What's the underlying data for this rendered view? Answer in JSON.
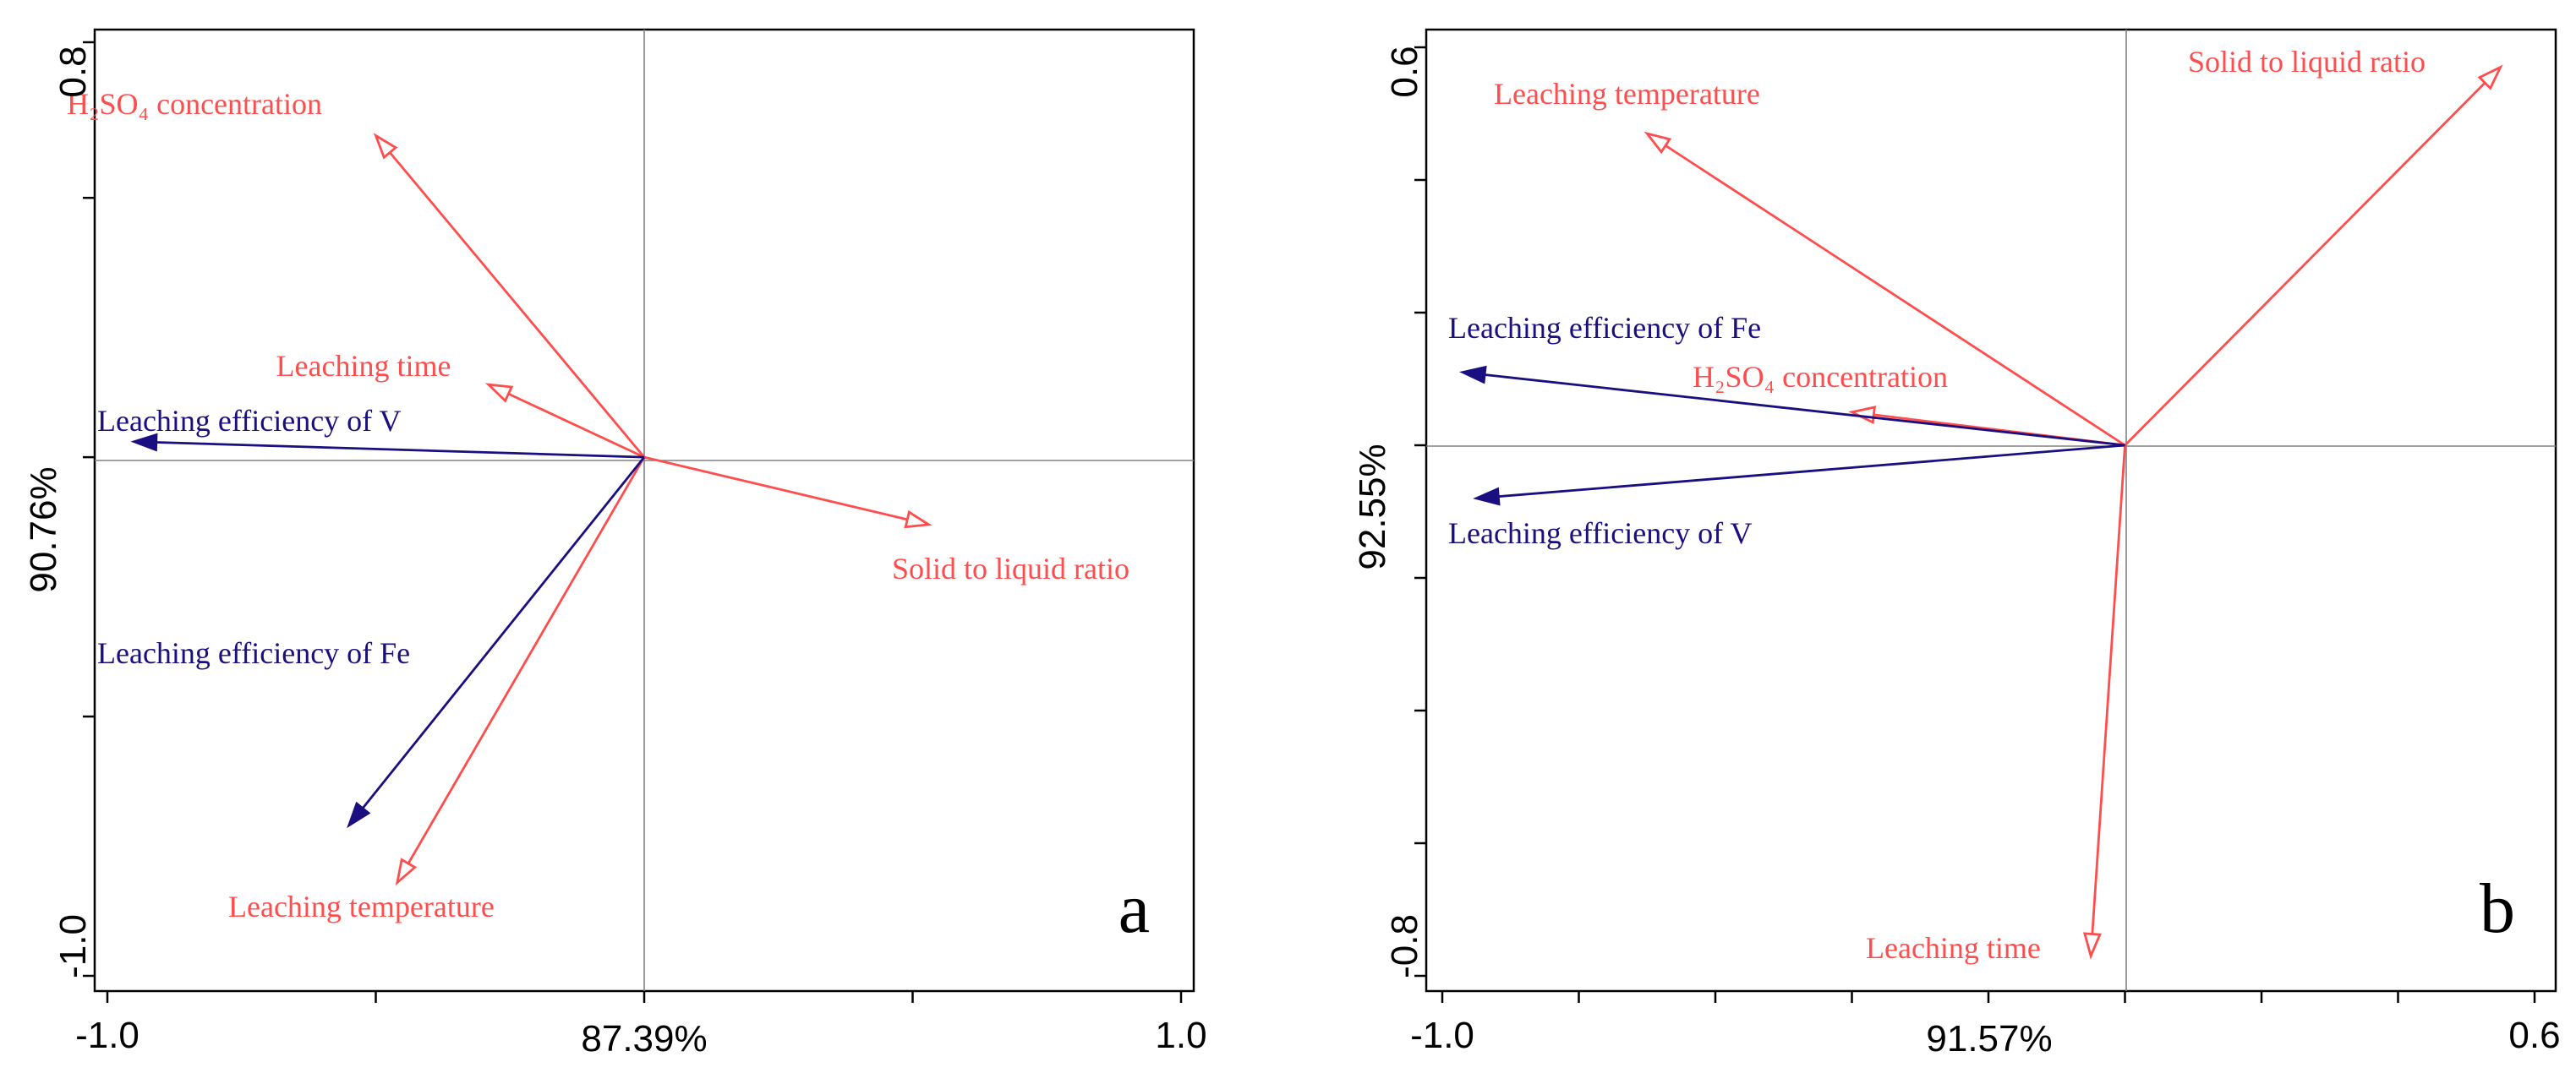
{
  "chart_data": [
    {
      "type": "biplot",
      "panel": "a",
      "xlabel": "87.39%",
      "ylabel": "90.76%",
      "xlim": [
        -1.0,
        1.0
      ],
      "ylim": [
        -1.0,
        0.8
      ],
      "x_tick_labels": [
        "-1.0",
        "1.0"
      ],
      "y_tick_labels": [
        "0.8",
        "-1.0"
      ],
      "x_minor_ticks": [
        -1.0,
        -0.5,
        0.0,
        0.5,
        1.0
      ],
      "y_minor_ticks": [
        -1.0,
        -0.5,
        0.0,
        0.5,
        0.8
      ],
      "vectors": [
        {
          "name": "H2SO4 concentration",
          "label": "H₂SO₄ concentration",
          "x": -0.5,
          "y": 0.62,
          "group": "factor",
          "color": "#ff4d4d",
          "head": "open"
        },
        {
          "name": "Leaching time",
          "label": "Leaching time",
          "x": -0.29,
          "y": 0.14,
          "group": "factor",
          "color": "#ff4d4d",
          "head": "open"
        },
        {
          "name": "Solid to liquid ratio",
          "label": "Solid to liquid ratio",
          "x": 0.53,
          "y": -0.13,
          "group": "factor",
          "color": "#ff4d4d",
          "head": "open"
        },
        {
          "name": "Leaching temperature",
          "label": "Leaching temperature",
          "x": -0.46,
          "y": -0.82,
          "group": "factor",
          "color": "#ff4d4d",
          "head": "open"
        },
        {
          "name": "Leaching efficiency of V",
          "label": "Leaching efficiency of V",
          "x": -0.95,
          "y": 0.03,
          "group": "response",
          "color": "#1a0f80",
          "head": "filled"
        },
        {
          "name": "Leaching efficiency of Fe",
          "label": "Leaching efficiency of Fe",
          "x": -0.55,
          "y": -0.71,
          "group": "response",
          "color": "#1a0f80",
          "head": "filled"
        }
      ]
    },
    {
      "type": "biplot",
      "panel": "b",
      "xlabel": "91.57%",
      "ylabel": "92.55%",
      "xlim": [
        -1.0,
        0.6
      ],
      "ylim": [
        -0.8,
        0.6
      ],
      "x_tick_labels": [
        "-1.0",
        "0.6"
      ],
      "y_tick_labels": [
        "0.6",
        "-0.8"
      ],
      "x_minor_ticks": [
        -1.0,
        -0.8,
        -0.6,
        -0.4,
        -0.2,
        0.0,
        0.2,
        0.4,
        0.6
      ],
      "y_minor_ticks": [
        -0.8,
        -0.6,
        -0.4,
        -0.2,
        0.0,
        0.2,
        0.4,
        0.6
      ],
      "vectors": [
        {
          "name": "Leaching temperature",
          "label": "Leaching temperature",
          "x": -0.7,
          "y": 0.47,
          "group": "factor",
          "color": "#ff4d4d",
          "head": "open"
        },
        {
          "name": "Solid to liquid ratio",
          "label": "Solid to liquid ratio",
          "x": 0.55,
          "y": 0.57,
          "group": "factor",
          "color": "#ff4d4d",
          "head": "open"
        },
        {
          "name": "H2SO4 concentration",
          "label": "H₂SO₄ concentration",
          "x": -0.4,
          "y": 0.05,
          "group": "factor",
          "color": "#ff4d4d",
          "head": "open"
        },
        {
          "name": "Leaching time",
          "label": "Leaching time",
          "x": -0.05,
          "y": -0.77,
          "group": "factor",
          "color": "#ff4d4d",
          "head": "open"
        },
        {
          "name": "Leaching efficiency of Fe",
          "label": "Leaching efficiency of Fe",
          "x": -0.97,
          "y": 0.11,
          "group": "response",
          "color": "#1a0f80",
          "head": "filled"
        },
        {
          "name": "Leaching efficiency of V",
          "label": "Leaching efficiency of V",
          "x": -0.95,
          "y": -0.08,
          "group": "response",
          "color": "#1a0f80",
          "head": "filled"
        }
      ]
    }
  ],
  "panel_a": {
    "letter": "a",
    "xlabel": "87.39%",
    "ylabel": "90.76%",
    "x_tick_min": "-1.0",
    "x_tick_max": "1.0",
    "y_tick_top": "0.8",
    "y_tick_bottom": "-1.0"
  },
  "panel_b": {
    "letter": "b",
    "xlabel": "91.57%",
    "ylabel": "92.55%",
    "x_tick_min": "-1.0",
    "x_tick_max": "0.6",
    "y_tick_top": "0.6",
    "y_tick_bottom": "-0.8"
  }
}
